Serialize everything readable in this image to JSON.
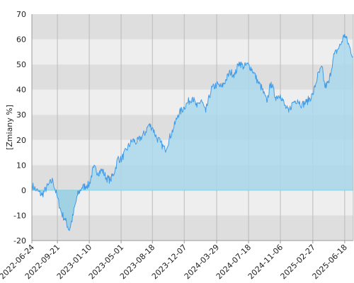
{
  "chart_data": {
    "type": "area",
    "title": "",
    "xlabel": "",
    "ylabel": "[Zmiany %]",
    "ylim": [
      -20,
      70
    ],
    "yticks": [
      -20,
      -10,
      0,
      10,
      20,
      30,
      40,
      50,
      60,
      70
    ],
    "xlim": [
      "2022-06-24",
      "2025-07-18"
    ],
    "xticks": [
      "2022-06-24",
      "2022-09-21",
      "2023-01-10",
      "2023-05-01",
      "2023-08-18",
      "2023-12-07",
      "2024-03-29",
      "2024-07-18",
      "2024-11-06",
      "2025-02-27",
      "2025-06-18"
    ],
    "grid": "alternating horizontal bands with vertical gridlines",
    "colors": {
      "line": "#3f9be8",
      "fill_above_zero": "#a9d8ec",
      "fill_below_zero": "#92cce2",
      "band_light": "#eeeeee",
      "band_dark": "#dedede",
      "vgrid": "#bbbbbb",
      "zero_line": "#7fd3e3"
    },
    "x": [
      "2022-06-24",
      "2022-07-10",
      "2022-07-30",
      "2022-08-20",
      "2022-09-05",
      "2022-09-21",
      "2022-10-05",
      "2022-10-20",
      "2022-11-02",
      "2022-11-15",
      "2022-11-30",
      "2022-12-15",
      "2023-01-02",
      "2023-01-10",
      "2023-01-25",
      "2023-02-10",
      "2023-02-25",
      "2023-03-10",
      "2023-03-25",
      "2023-04-10",
      "2023-04-20",
      "2023-05-01",
      "2023-05-20",
      "2023-06-10",
      "2023-06-25",
      "2023-07-10",
      "2023-07-25",
      "2023-08-05",
      "2023-08-18",
      "2023-09-01",
      "2023-09-15",
      "2023-10-01",
      "2023-10-15",
      "2023-11-01",
      "2023-11-15",
      "2023-12-07",
      "2023-12-20",
      "2024-01-05",
      "2024-01-20",
      "2024-02-05",
      "2024-02-20",
      "2024-03-10",
      "2024-03-29",
      "2024-04-15",
      "2024-05-01",
      "2024-05-15",
      "2024-06-01",
      "2024-06-15",
      "2024-07-01",
      "2024-07-18",
      "2024-08-05",
      "2024-08-20",
      "2024-09-05",
      "2024-09-20",
      "2024-10-05",
      "2024-10-20",
      "2024-11-06",
      "2024-11-20",
      "2024-12-05",
      "2024-12-20",
      "2025-01-05",
      "2025-01-20",
      "2025-02-05",
      "2025-02-27",
      "2025-03-15",
      "2025-04-01",
      "2025-04-10",
      "2025-04-25",
      "2025-05-10",
      "2025-05-25",
      "2025-06-05",
      "2025-06-18",
      "2025-07-05",
      "2025-07-18"
    ],
    "series": [
      {
        "values": [
          2,
          0,
          -2,
          2,
          4,
          -3,
          -9,
          -12,
          -16,
          -10,
          -2,
          1,
          2,
          2,
          9,
          7,
          8,
          5,
          4,
          8,
          13,
          12,
          16,
          20,
          19,
          21,
          23,
          26,
          25,
          21,
          19,
          16,
          20,
          25,
          30,
          33,
          35,
          37,
          33,
          36,
          31,
          40,
          42,
          41,
          44,
          47,
          46,
          51,
          49,
          50,
          47,
          43,
          40,
          35,
          43,
          37,
          38,
          34,
          31,
          35,
          36,
          34,
          35,
          38,
          45,
          49,
          41,
          43,
          53,
          56,
          58,
          62,
          57,
          53
        ]
      }
    ]
  }
}
